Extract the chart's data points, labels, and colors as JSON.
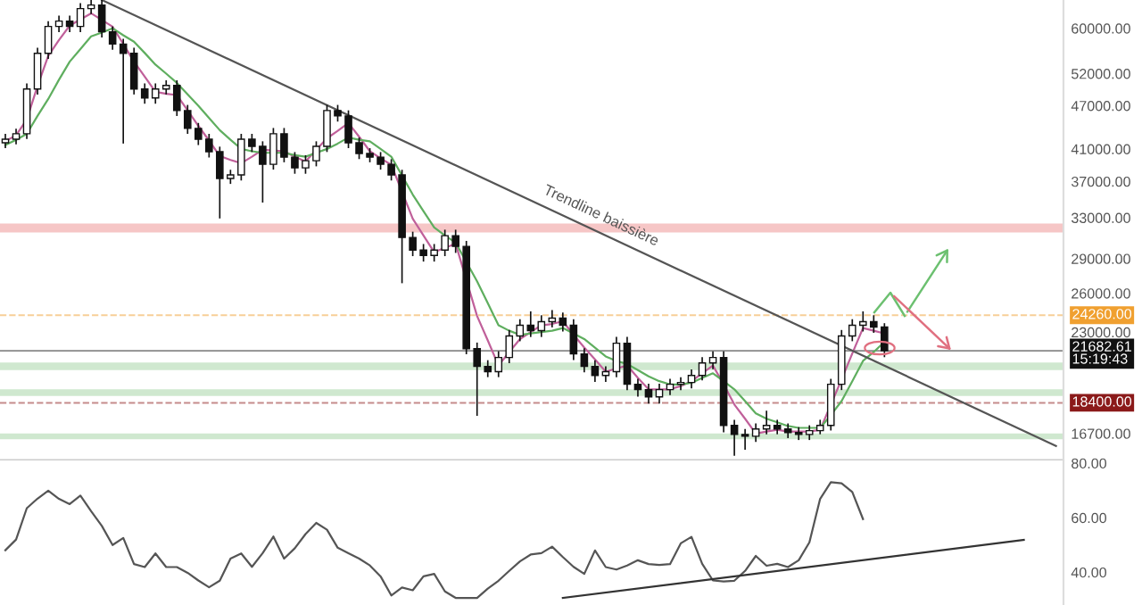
{
  "chart_data": [
    {
      "type": "candlestick",
      "log": "y",
      "grid": false,
      "legend": false,
      "tick_labels": "y",
      "categories": [
        null,
        null,
        null,
        null,
        null,
        null,
        null,
        null,
        null,
        null,
        null,
        null,
        null,
        null,
        null,
        null,
        null,
        null,
        null,
        null,
        null,
        null,
        null,
        null,
        null,
        null,
        null,
        null,
        null,
        null,
        null,
        null,
        null,
        null,
        null,
        null,
        null,
        null,
        null,
        null,
        null,
        null,
        null,
        null,
        null,
        null,
        null,
        null,
        null,
        null,
        null,
        null,
        null,
        null,
        null,
        null,
        null,
        null,
        null,
        null,
        null,
        null,
        null,
        null,
        null,
        null,
        null,
        null,
        null,
        null,
        null,
        null,
        null,
        null,
        null,
        null,
        null,
        null,
        null,
        null,
        null,
        null,
        null,
        null,
        null,
        null,
        null,
        null,
        null,
        null,
        null,
        null,
        null,
        null,
        null,
        null,
        null,
        null,
        null
      ],
      "ylim": [
        15340,
        65600
      ],
      "yticks": [
        {
          "value": 60000,
          "label": "60000.00"
        },
        {
          "value": 52000,
          "label": "52000.00"
        },
        {
          "value": 47000,
          "label": "47000.00"
        },
        {
          "value": 41000,
          "label": "41000.00"
        },
        {
          "value": 37000,
          "label": "37000.00"
        },
        {
          "value": 33000,
          "label": "33000.00"
        },
        {
          "value": 29000,
          "label": "29000.00"
        },
        {
          "value": 26000,
          "label": "26000.00"
        },
        {
          "value": 23000,
          "label": "23000.00"
        },
        {
          "value": 16700,
          "label": "16700.00"
        }
      ],
      "ohlc": [
        [
          41800,
          42900,
          41200,
          42270
        ],
        [
          42270,
          43600,
          41700,
          43010
        ],
        [
          43010,
          50300,
          42400,
          49530
        ],
        [
          49530,
          56300,
          48800,
          55440
        ],
        [
          55440,
          61200,
          54600,
          60340
        ],
        [
          60340,
          62300,
          59400,
          61370
        ],
        [
          61370,
          62300,
          59400,
          60340
        ],
        [
          60340,
          64800,
          59400,
          63850
        ],
        [
          63850,
          65500,
          62900,
          64570
        ],
        [
          64570,
          65500,
          58400,
          59330
        ],
        [
          59330,
          60200,
          56200,
          57080
        ],
        [
          57080,
          57900,
          41800,
          55440
        ],
        [
          55440,
          56300,
          48800,
          49530
        ],
        [
          49530,
          50300,
          47400,
          48150
        ],
        [
          48150,
          50300,
          47400,
          49530
        ],
        [
          49530,
          50800,
          48800,
          50090
        ],
        [
          50090,
          50800,
          45600,
          46275
        ],
        [
          46275,
          47000,
          43100,
          43740
        ],
        [
          43740,
          44400,
          41600,
          42270
        ],
        [
          42270,
          42900,
          40000,
          40640
        ],
        [
          40640,
          41200,
          33000,
          37350
        ],
        [
          37350,
          38300,
          36800,
          37770
        ],
        [
          37770,
          42900,
          37200,
          42270
        ],
        [
          42270,
          42900,
          40700,
          41330
        ],
        [
          41330,
          41900,
          34700,
          39060
        ],
        [
          39060,
          43700,
          38500,
          43010
        ],
        [
          43010,
          43700,
          39400,
          39950
        ],
        [
          39950,
          40500,
          38000,
          38620
        ],
        [
          38620,
          40100,
          38000,
          39500
        ],
        [
          39500,
          41900,
          38900,
          41330
        ],
        [
          41330,
          47000,
          40700,
          46275
        ],
        [
          46275,
          47000,
          44800,
          45500
        ],
        [
          45500,
          46200,
          41200,
          41800
        ],
        [
          41800,
          42400,
          39800,
          40410
        ],
        [
          40410,
          41000,
          39400,
          39950
        ],
        [
          39950,
          40500,
          38500,
          39060
        ],
        [
          39060,
          39600,
          37200,
          37770
        ],
        [
          37770,
          38300,
          26900,
          31000
        ],
        [
          31000,
          31500,
          29300,
          29800
        ],
        [
          29800,
          30300,
          28800,
          29300
        ],
        [
          29300,
          30300,
          28800,
          29800
        ],
        [
          29800,
          31700,
          29300,
          31180
        ],
        [
          31180,
          31700,
          29600,
          30140
        ],
        [
          30140,
          30600,
          21500,
          21830
        ],
        [
          21830,
          22200,
          17700,
          20640
        ],
        [
          20640,
          21000,
          20000,
          20300
        ],
        [
          20300,
          21600,
          20000,
          21230
        ],
        [
          21230,
          23100,
          20900,
          22720
        ],
        [
          22720,
          23900,
          22400,
          23500
        ],
        [
          23500,
          24500,
          22700,
          23110
        ],
        [
          23110,
          24200,
          22700,
          23770
        ],
        [
          23770,
          24600,
          23400,
          24040
        ],
        [
          24040,
          24400,
          23100,
          23500
        ],
        [
          23500,
          23900,
          21100,
          21470
        ],
        [
          21470,
          21800,
          20300,
          20640
        ],
        [
          20640,
          21000,
          19700,
          20060
        ],
        [
          20060,
          20600,
          19700,
          20300
        ],
        [
          20300,
          22600,
          20000,
          22210
        ],
        [
          22210,
          22600,
          19200,
          19510
        ],
        [
          19510,
          19800,
          18800,
          19180
        ],
        [
          19180,
          19500,
          18400,
          18750
        ],
        [
          18750,
          19500,
          18400,
          19180
        ],
        [
          19180,
          19800,
          18900,
          19510
        ],
        [
          19510,
          19900,
          19200,
          19620
        ],
        [
          19620,
          20400,
          19300,
          20060
        ],
        [
          20060,
          21200,
          19800,
          20870
        ],
        [
          20870,
          21600,
          20500,
          21230
        ],
        [
          21230,
          21600,
          16800,
          17130
        ],
        [
          17130,
          17400,
          15600,
          16650
        ],
        [
          16650,
          16900,
          15900,
          16560
        ],
        [
          16560,
          17200,
          16300,
          16940
        ],
        [
          16940,
          17900,
          16700,
          17130
        ],
        [
          17130,
          17400,
          16700,
          16940
        ],
        [
          16940,
          17200,
          16500,
          16750
        ],
        [
          16750,
          17000,
          16400,
          16650
        ],
        [
          16650,
          17100,
          16400,
          16850
        ],
        [
          16850,
          17400,
          16700,
          17130
        ],
        [
          17130,
          19800,
          16900,
          19510
        ],
        [
          19510,
          23100,
          19200,
          22720
        ],
        [
          22720,
          23900,
          22400,
          23500
        ],
        [
          23500,
          24500,
          23100,
          23770
        ],
        [
          23770,
          24200,
          23000,
          23370
        ],
        [
          23370,
          23600,
          21300,
          21682.61
        ],
        null,
        null,
        null,
        null,
        null,
        null,
        null,
        null,
        null,
        null,
        null,
        null,
        null,
        null,
        null,
        null
      ],
      "series": [
        {
          "type": "line",
          "color": "#c0609a",
          "values": [
            42000,
            42800,
            45000,
            50000,
            55000,
            57800,
            60500,
            61700,
            62900,
            61600,
            60300,
            57100,
            54000,
            51500,
            49100,
            48800,
            48600,
            46300,
            44100,
            42100,
            40100,
            39600,
            39200,
            40000,
            40900,
            40800,
            40700,
            40000,
            39400,
            40900,
            42400,
            43400,
            44500,
            42600,
            40700,
            39800,
            39000,
            null,
            32900,
            31200,
            29600,
            30000,
            30400,
            null,
            24200,
            22400,
            20700,
            21600,
            22500,
            23000,
            23500,
            23600,
            23800,
            22800,
            21900,
            21100,
            20300,
            20500,
            20700,
            19900,
            19200,
            19200,
            19200,
            19400,
            19700,
            20200,
            20700,
            19500,
            18300,
            17500,
            16700,
            16800,
            16900,
            16800,
            16800,
            16800,
            16900,
            18300,
            19800,
            21500,
            23300,
            23100,
            22900,
            null,
            null,
            null,
            null,
            null,
            null,
            null,
            null,
            null,
            null,
            null,
            null,
            null,
            null,
            null,
            null
          ]
        },
        {
          "type": "line",
          "color": "#5fae5f",
          "values": [
            41500,
            42200,
            43000,
            45500,
            48000,
            51000,
            54000,
            56200,
            58500,
            59200,
            60000,
            58700,
            57500,
            55500,
            53500,
            52000,
            50500,
            48700,
            47000,
            45200,
            43500,
            42200,
            41000,
            40700,
            40500,
            40500,
            40500,
            40200,
            40000,
            40500,
            41000,
            41700,
            42500,
            42200,
            42000,
            41000,
            40000,
            37700,
            35500,
            33700,
            32000,
            31200,
            30500,
            28700,
            27000,
            25200,
            23500,
            23100,
            22800,
            22900,
            23000,
            23100,
            23300,
            22900,
            22500,
            21900,
            21300,
            21000,
            20800,
            20400,
            20000,
            19700,
            19500,
            19500,
            19600,
            19900,
            20200,
            19700,
            19200,
            18500,
            17800,
            17500,
            17300,
            17100,
            17000,
            17000,
            17000,
            17700,
            18500,
            19700,
            21000,
            21600,
            22300,
            null,
            null,
            null,
            null,
            null,
            null,
            null,
            null,
            null,
            null,
            null,
            null,
            null,
            null,
            null,
            null
          ]
        },
        {
          "type": "line",
          "color": "#555555",
          "values": [
            null,
            null,
            null,
            null,
            null,
            null,
            null,
            null,
            null,
            65600,
            null,
            null,
            null,
            null,
            null,
            null,
            null,
            null,
            null,
            null,
            null,
            null,
            null,
            null,
            null,
            null,
            null,
            null,
            null,
            null,
            null,
            null,
            null,
            null,
            null,
            null,
            null,
            null,
            null,
            null,
            null,
            null,
            null,
            null,
            null,
            null,
            null,
            null,
            null,
            null,
            null,
            null,
            null,
            null,
            null,
            null,
            null,
            null,
            null,
            null,
            null,
            null,
            null,
            null,
            null,
            null,
            null,
            null,
            null,
            null,
            null,
            null,
            null,
            null,
            null,
            null,
            null,
            null,
            null,
            null,
            null,
            null,
            null,
            null,
            null,
            null,
            null,
            null,
            null,
            null,
            null,
            null,
            null,
            null,
            null,
            null,
            null,
            null,
            16060
          ]
        }
      ],
      "annotations": [
        "Trendline baissière"
      ],
      "ref_lines": [
        {
          "axis": "y",
          "value": 24260,
          "label": "24260.00",
          "color": "#f0a030",
          "line_style": "dashed"
        },
        {
          "axis": "y",
          "value": 21682.61,
          "label": "21682.61\n15:19:43",
          "color": "#111111",
          "line_style": "solid"
        },
        {
          "axis": "y",
          "value": 18400,
          "label": "18400.00",
          "color": "#8b1a1a",
          "line_style": "dashed"
        }
      ],
      "bands": [
        {
          "axis": "y",
          "from": 31500,
          "to": 32400,
          "color": "#f6c6c6"
        },
        {
          "axis": "y",
          "from": 20400,
          "to": 20900,
          "color": "#cfe8cf"
        },
        {
          "axis": "y",
          "from": 18800,
          "to": 19200,
          "color": "#cfe8cf"
        },
        {
          "axis": "y",
          "from": 16400,
          "to": 16700,
          "color": "#cfe8cf"
        }
      ]
    },
    {
      "type": "line",
      "grid": false,
      "legend": false,
      "tick_labels": "y",
      "ylim": [
        28,
        81
      ],
      "categories": [
        null,
        null,
        null,
        null,
        null,
        null,
        null,
        null,
        null,
        null,
        null,
        null,
        null,
        null,
        null,
        null,
        null,
        null,
        null,
        null,
        null,
        null,
        null,
        null,
        null,
        null,
        null,
        null,
        null,
        null,
        null,
        null,
        null,
        null,
        null,
        null,
        null,
        null,
        null,
        null,
        null,
        null,
        null,
        null,
        null,
        null,
        null,
        null,
        null,
        null,
        null,
        null,
        null,
        null,
        null,
        null,
        null,
        null,
        null,
        null,
        null,
        null,
        null,
        null,
        null,
        null,
        null,
        null,
        null,
        null,
        null,
        null,
        null,
        null,
        null,
        null,
        null,
        null,
        null,
        null,
        null,
        null,
        null,
        null,
        null,
        null,
        null,
        null,
        null,
        null,
        null,
        null,
        null,
        null,
        null,
        null,
        null,
        null,
        null
      ],
      "yticks": [
        {
          "value": 40,
          "label": "40.00"
        },
        {
          "value": 60,
          "label": "60.00"
        },
        {
          "value": 80,
          "label": "80.00"
        }
      ],
      "series": [
        {
          "color": "#555555",
          "values": [
            48.1,
            52,
            63.5,
            67,
            69.9,
            66.9,
            65,
            68.1,
            62.4,
            57,
            50,
            52.6,
            43,
            41.9,
            46.9,
            41.9,
            41.9,
            39.8,
            37,
            34.5,
            36.9,
            45,
            46.9,
            42,
            47,
            53.1,
            45,
            48.8,
            54,
            58.1,
            55.6,
            49,
            47,
            45,
            42.5,
            38.5,
            31.5,
            34.4,
            33.4,
            38.5,
            39.4,
            33,
            30.6,
            30.6,
            30.6,
            34,
            36.9,
            40.5,
            44,
            46.5,
            47,
            49.4,
            45.6,
            42,
            39.4,
            48,
            41.9,
            41,
            42.5,
            44.4,
            43,
            42.7,
            43,
            50.6,
            53,
            43.1,
            37,
            36.6,
            36.9,
            40.5,
            46,
            42.4,
            43.1,
            41.9,
            44.4,
            51,
            66.9,
            73,
            72.6,
            69.4,
            59.5,
            null,
            null,
            null,
            null,
            null,
            null,
            null,
            null,
            null,
            null,
            null,
            null,
            null,
            null,
            null,
            null,
            null,
            null
          ]
        },
        {
          "color": "#333333",
          "values": [
            null,
            null,
            null,
            null,
            null,
            null,
            null,
            null,
            null,
            null,
            null,
            null,
            null,
            null,
            null,
            null,
            null,
            null,
            null,
            null,
            null,
            null,
            null,
            null,
            null,
            null,
            null,
            null,
            null,
            null,
            null,
            null,
            null,
            null,
            null,
            null,
            null,
            null,
            null,
            null,
            null,
            null,
            null,
            null,
            null,
            null,
            null,
            null,
            null,
            null,
            null,
            null,
            30.6,
            null,
            null,
            null,
            null,
            null,
            null,
            null,
            null,
            null,
            null,
            null,
            null,
            null,
            null,
            null,
            null,
            null,
            null,
            null,
            null,
            null,
            null,
            null,
            null,
            null,
            null,
            null,
            null,
            null,
            null,
            null,
            null,
            null,
            null,
            null,
            null,
            null,
            null,
            null,
            null,
            null,
            null,
            51.9,
            null,
            null,
            null
          ]
        }
      ]
    }
  ]
}
